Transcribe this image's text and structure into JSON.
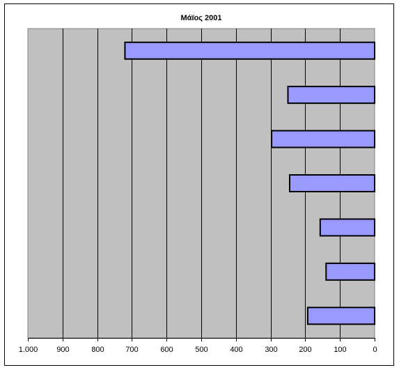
{
  "chart_data": {
    "type": "bar",
    "orientation": "horizontal",
    "x_axis_reversed": true,
    "title": "Μάϊος 2001",
    "xlabel": "",
    "ylabel": "",
    "xlim": [
      0,
      1000
    ],
    "x_ticks": [
      0,
      100,
      200,
      300,
      400,
      500,
      600,
      700,
      800,
      900,
      1000
    ],
    "x_tick_labels": [
      "0",
      "100",
      "200",
      "300",
      "400",
      "500",
      "600",
      "700",
      "800",
      "900",
      "1.000"
    ],
    "values": [
      720,
      250,
      297,
      245,
      157,
      140,
      193
    ],
    "grid": true,
    "legend": "none",
    "colors": {
      "bar_fill": "#9999ff",
      "bar_stroke": "#000000",
      "plot_background": "#c0c0c0",
      "gridline": "#000000"
    }
  }
}
